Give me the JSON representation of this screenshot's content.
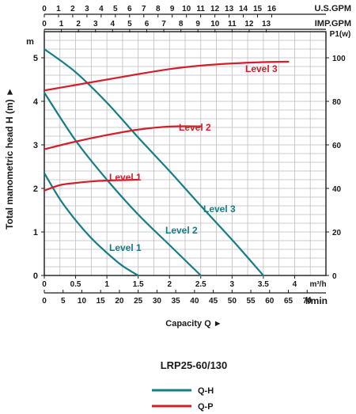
{
  "chart_data": {
    "type": "line",
    "title": "LRP25-60/130",
    "xlabel": "Capacity Q ►",
    "ylabel": "Total manometric head H (m) ►",
    "y_unit": "m",
    "y2_unit": "P1(w)",
    "x_unit_m3h": "m³/h",
    "x_unit_lmin": "l/min",
    "x_unit_usgpm": "U.S.GPM",
    "x_unit_impgpm": "IMP.GPM",
    "xlim_m3h": [
      0,
      4.5
    ],
    "ylim": [
      0,
      5.6
    ],
    "y2lim": [
      0,
      112
    ],
    "grid": true,
    "x_ticks_m3h": [
      "0",
      "0.5",
      "1",
      "1.5",
      "2",
      "2.5",
      "3",
      "3.5",
      "4"
    ],
    "x_ticks_lmin": [
      "0",
      "5",
      "10",
      "15",
      "20",
      "25",
      "30",
      "35",
      "40",
      "45",
      "50",
      "55",
      "60",
      "65",
      "70"
    ],
    "x_ticks_usgpm": [
      "0",
      "1",
      "2",
      "3",
      "4",
      "5",
      "6",
      "7",
      "8",
      "9",
      "10",
      "11",
      "12",
      "13",
      "14",
      "15",
      "16"
    ],
    "x_ticks_impgpm": [
      "0",
      "1",
      "2",
      "3",
      "4",
      "5",
      "6",
      "7",
      "8",
      "9",
      "10",
      "11",
      "12",
      "13"
    ],
    "y_ticks": [
      "0",
      "1",
      "2",
      "3",
      "4",
      "5"
    ],
    "y2_ticks": [
      "0",
      "20",
      "40",
      "60",
      "80",
      "100"
    ],
    "legend": {
      "position": "bottom",
      "entries": [
        {
          "name": "Q-H",
          "color": "#167d87"
        },
        {
          "name": "Q-P",
          "color": "#d21f2b"
        }
      ]
    },
    "series": [
      {
        "name": "Level 1",
        "kind": "Q-H",
        "color": "#167d87",
        "x": [
          0,
          0.25,
          0.5,
          0.75,
          1.0,
          1.25,
          1.5
        ],
        "y": [
          2.35,
          1.75,
          1.27,
          0.86,
          0.52,
          0.22,
          0.0
        ]
      },
      {
        "name": "Level 2",
        "kind": "Q-H",
        "color": "#167d87",
        "x": [
          0,
          0.5,
          1.0,
          1.5,
          2.0,
          2.5
        ],
        "y": [
          4.2,
          3.1,
          2.2,
          1.4,
          0.7,
          0.0
        ]
      },
      {
        "name": "Level 3",
        "kind": "Q-H",
        "color": "#167d87",
        "x": [
          0,
          0.5,
          1.0,
          1.5,
          2.0,
          2.5,
          3.0,
          3.5
        ],
        "y": [
          5.2,
          4.67,
          3.97,
          3.17,
          2.4,
          1.6,
          0.82,
          0.0
        ]
      },
      {
        "name": "Level 1",
        "kind": "Q-P",
        "color": "#d21f2b",
        "x": [
          0,
          0.25,
          0.5,
          0.75,
          1.0,
          1.25,
          1.5
        ],
        "y": [
          39,
          41.5,
          42.5,
          43.2,
          43.6,
          43.8,
          44
        ]
      },
      {
        "name": "Level 2",
        "kind": "Q-P",
        "color": "#d21f2b",
        "x": [
          0,
          0.5,
          1.0,
          1.5,
          2.0,
          2.5
        ],
        "y": [
          58,
          61.5,
          64.5,
          67,
          68.4,
          68.5
        ]
      },
      {
        "name": "Level 3",
        "kind": "Q-P",
        "color": "#d21f2b",
        "x": [
          0,
          0.5,
          1.0,
          1.5,
          2.0,
          2.5,
          3.0,
          3.5,
          3.9
        ],
        "y": [
          85,
          87.5,
          90,
          92.5,
          94.8,
          96.4,
          97.4,
          98,
          98.2
        ]
      }
    ]
  }
}
